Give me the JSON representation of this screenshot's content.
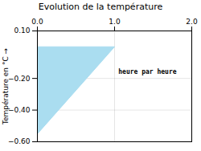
{
  "chart_data": {
    "type": "polygon",
    "title": "Evolution de la température",
    "ylabel": "Température en °C",
    "x": [
      0,
      1,
      0
    ],
    "values": [
      0.0,
      0.0,
      -0.55
    ],
    "color": "#aaddf0",
    "xlim": [
      0,
      2
    ],
    "ylim": [
      -0.6,
      0.1
    ],
    "xticks": [
      0,
      1,
      2
    ],
    "yticks": [
      0.1,
      -0.2,
      -0.4,
      -0.6
    ],
    "grid": true,
    "annotations": [
      {
        "text": "heure par heure",
        "x": 1.05,
        "y": -0.14
      }
    ]
  }
}
